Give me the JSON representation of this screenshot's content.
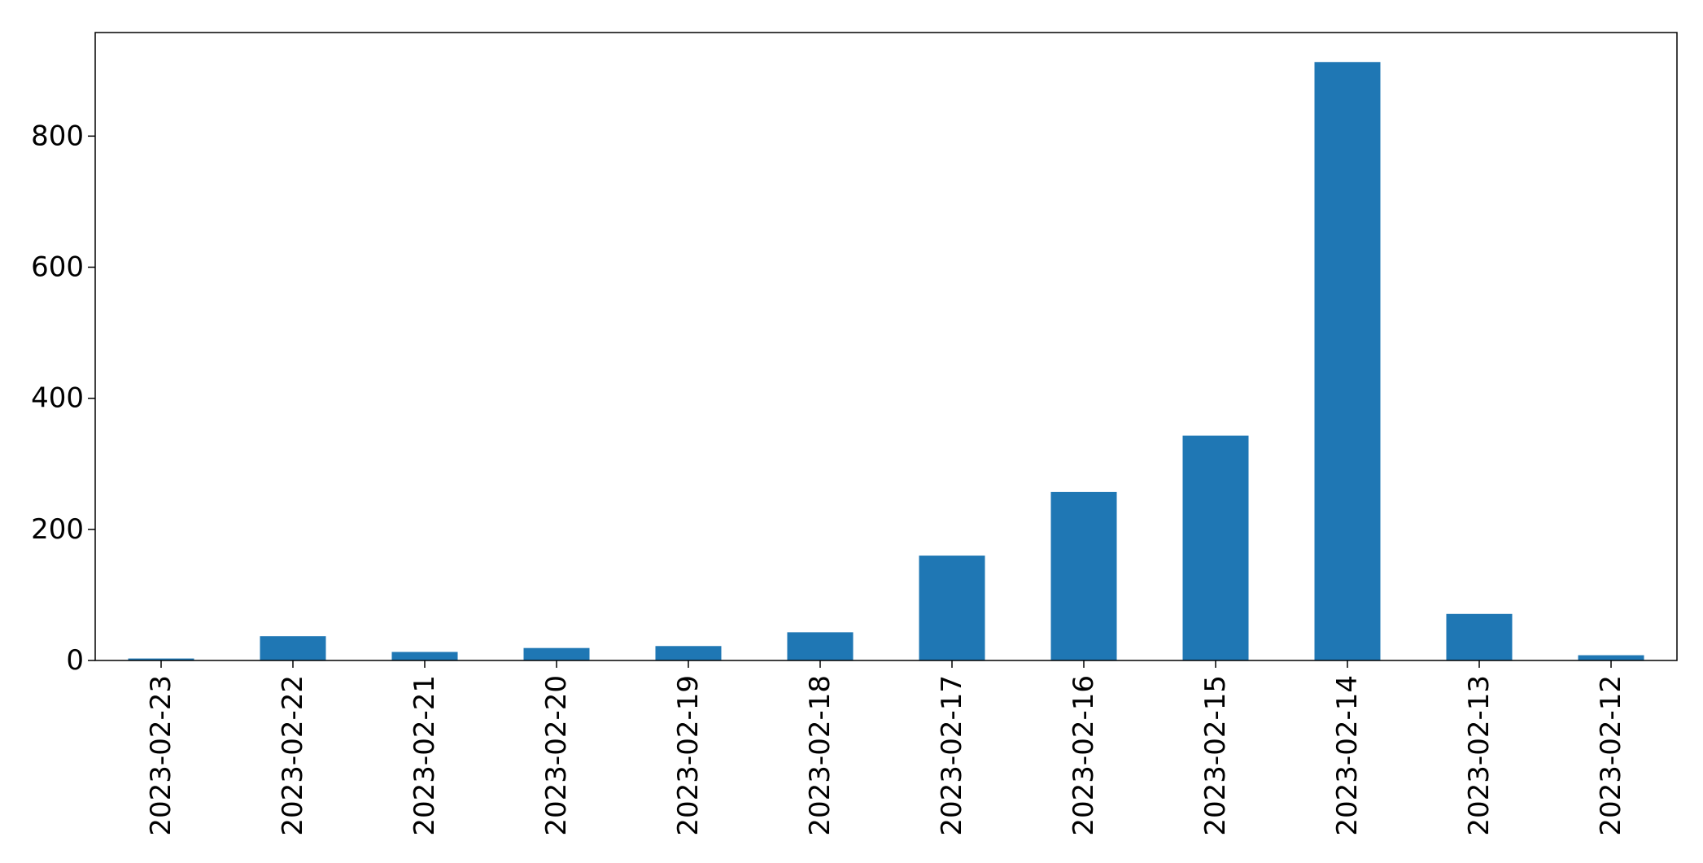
{
  "chart_data": {
    "type": "bar",
    "categories": [
      "2023-02-23",
      "2023-02-22",
      "2023-02-21",
      "2023-02-20",
      "2023-02-19",
      "2023-02-18",
      "2023-02-17",
      "2023-02-16",
      "2023-02-15",
      "2023-02-14",
      "2023-02-13",
      "2023-02-12"
    ],
    "values": [
      3,
      37,
      13,
      19,
      22,
      43,
      160,
      257,
      343,
      913,
      71,
      8
    ],
    "yticks": [
      "0",
      "200",
      "400",
      "600",
      "800"
    ],
    "ylim": [
      0,
      958
    ],
    "xlabel": "",
    "ylabel": "",
    "title": "",
    "bar_color": "#1f77b4",
    "grid": false,
    "legend": "none"
  }
}
